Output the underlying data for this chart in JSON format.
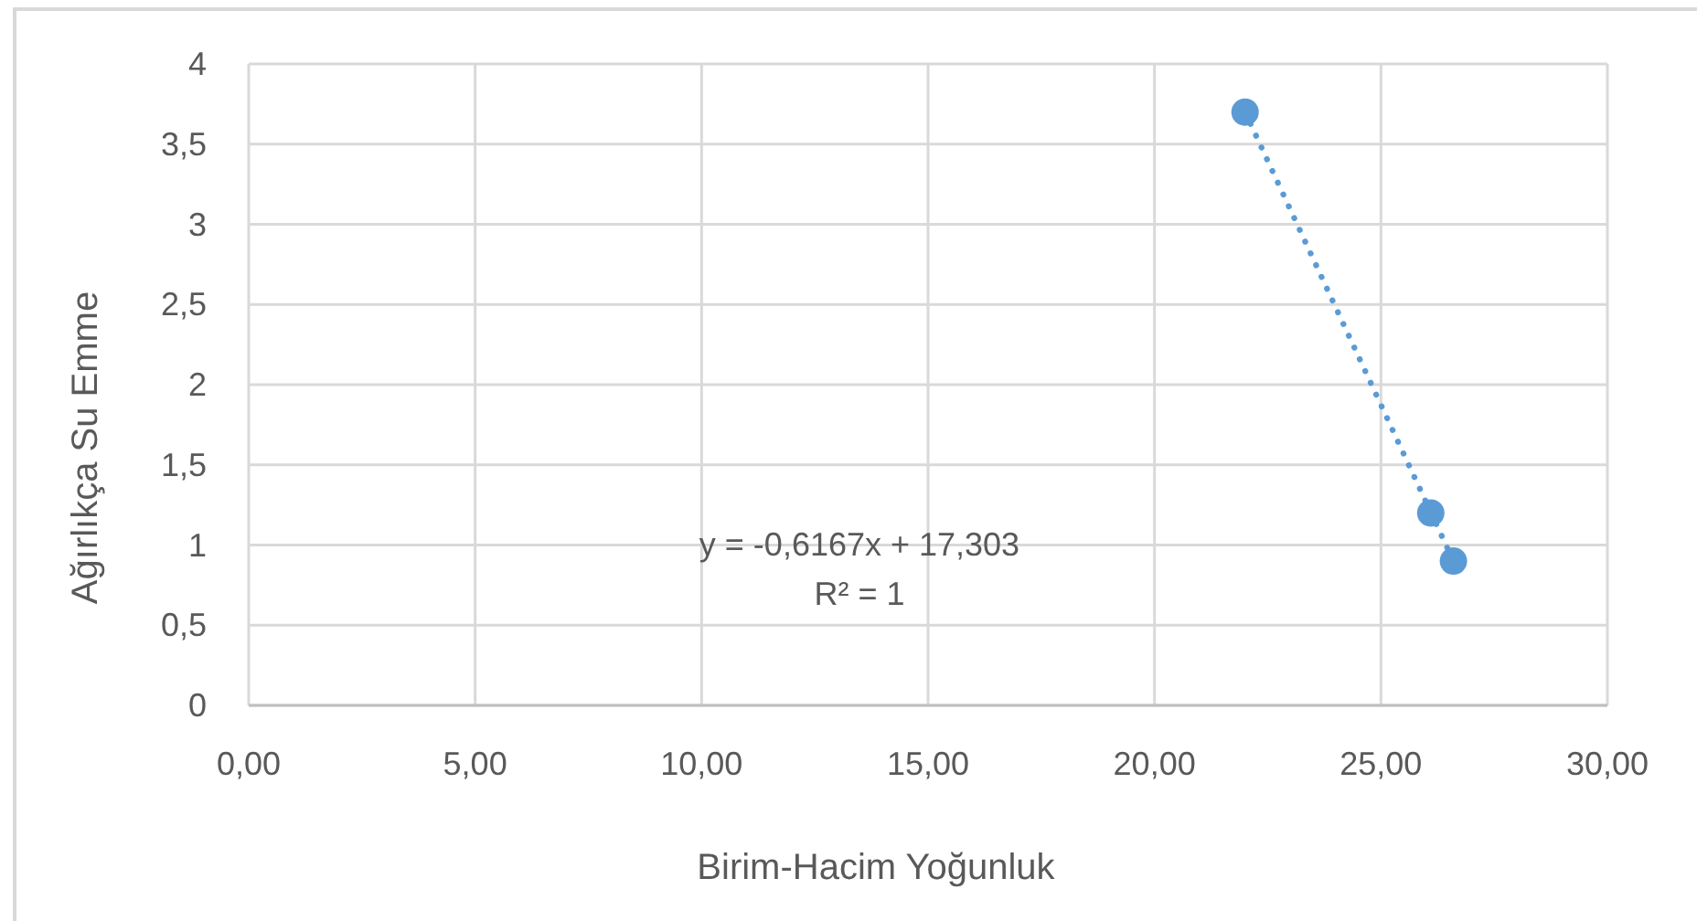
{
  "chart_data": {
    "type": "scatter",
    "xlabel": "Birim-Hacim Yoğunluk",
    "ylabel": "Ağırlıkça Su Emme",
    "annotations": [
      "y = -0,6167x + 17,303",
      "R² = 1"
    ],
    "series": [
      {
        "color": "#5b9bd5",
        "x": [
          22.0,
          26.1,
          26.6
        ],
        "values": [
          3.7,
          1.2,
          0.9
        ]
      },
      {
        "type": "line",
        "color": "#5b9bd5",
        "x": [
          22.0,
          26.6
        ],
        "values": [
          3.7,
          0.9
        ],
        "line_style": "dotted",
        "marker": "none"
      }
    ],
    "xlim": [
      0,
      30
    ],
    "xticks": [
      {
        "value": 0,
        "label": "0,00"
      },
      {
        "value": 5,
        "label": "5,00"
      },
      {
        "value": 10,
        "label": "10,00"
      },
      {
        "value": 15,
        "label": "15,00"
      },
      {
        "value": 20,
        "label": "20,00"
      },
      {
        "value": 25,
        "label": "25,00"
      },
      {
        "value": 30,
        "label": "30,00"
      }
    ],
    "ylim": [
      0,
      4
    ],
    "yticks": [
      0,
      {
        "value": 0.5,
        "label": "0,5"
      },
      1,
      {
        "value": 1.5,
        "label": "1,5"
      },
      2,
      {
        "value": 2.5,
        "label": "2,5"
      },
      3,
      {
        "value": 3.5,
        "label": "3,5"
      },
      4
    ],
    "grid": true,
    "marker": "circle"
  }
}
